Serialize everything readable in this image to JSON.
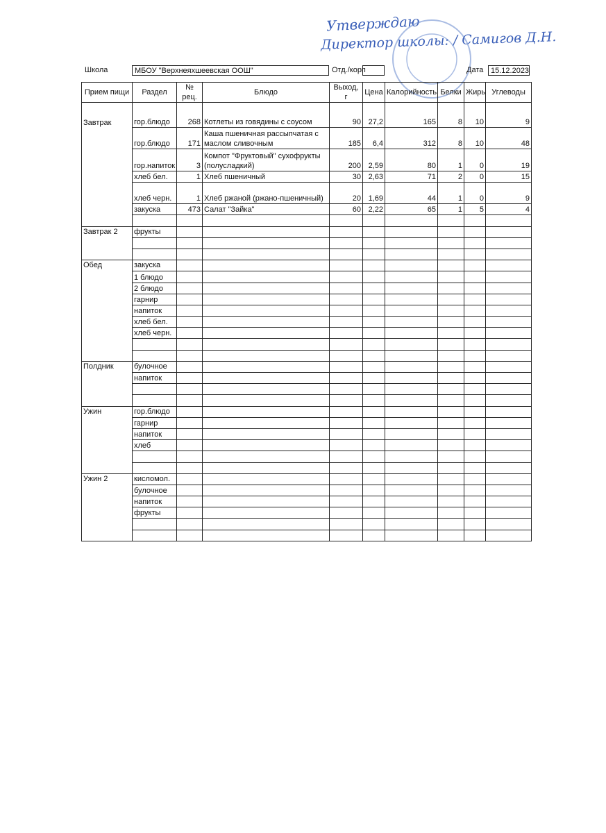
{
  "approval": {
    "line1": "Утверждаю",
    "line2": "Директор школы: / Самигов Д.Н."
  },
  "header": {
    "school_label": "Школа",
    "school_name": "МБОУ \"Верхнеяхшеевская ООШ\"",
    "dept_label": "Отд./корп",
    "date_label": "Дата",
    "date": "15.12.2023"
  },
  "table": {
    "columns": [
      "Прием пищи",
      "Раздел",
      "№ рец.",
      "Блюдо",
      "Выход, г",
      "Цена",
      "Калорийность",
      "Белки",
      "Жиры",
      "Углеводы"
    ],
    "sections": [
      {
        "meal": "Завтрак",
        "rows": [
          [
            "гор.блюдо",
            "268",
            "Котлеты из говядины с соусом",
            "90",
            "27,2",
            "165",
            "8",
            "10",
            "9"
          ],
          [
            "гор.блюдо",
            "171",
            "Каша пшеничная рассыпчатая с маслом сливочным",
            "185",
            "6,4",
            "312",
            "8",
            "10",
            "48"
          ],
          [
            "гор.напиток",
            "3",
            "Компот \"Фруктовый\" сухофрукты (полусладкий)",
            "200",
            "2,59",
            "80",
            "1",
            "0",
            "19"
          ],
          [
            "хлеб бел.",
            "1",
            "Хлеб пшеничный",
            "30",
            "2,63",
            "71",
            "2",
            "0",
            "15"
          ],
          [
            "хлеб черн.",
            "1",
            "Хлеб ржаной (ржано-пшеничный)",
            "20",
            "1,69",
            "44",
            "1",
            "0",
            "9"
          ],
          [
            "закуска",
            "473",
            "Салат \"Зайка\"",
            "60",
            "2,22",
            "65",
            "1",
            "5",
            "4"
          ],
          null
        ]
      },
      {
        "meal": "Завтрак 2",
        "rows": [
          [
            "фрукты"
          ],
          null,
          null
        ]
      },
      {
        "meal": "Обед",
        "rows": [
          [
            "закуска"
          ],
          [
            "1 блюдо"
          ],
          [
            "2 блюдо"
          ],
          [
            "гарнир"
          ],
          [
            "напиток"
          ],
          [
            "хлеб бел."
          ],
          [
            "хлеб черн."
          ],
          null,
          null
        ]
      },
      {
        "meal": "Полдник",
        "rows": [
          [
            "булочное"
          ],
          [
            "напиток"
          ],
          null,
          null
        ]
      },
      {
        "meal": "Ужин",
        "rows": [
          [
            "гор.блюдо"
          ],
          [
            "гарнир"
          ],
          [
            "напиток"
          ],
          [
            "хлеб"
          ],
          null,
          null
        ]
      },
      {
        "meal": "Ужин 2",
        "rows": [
          [
            "кисломол."
          ],
          [
            "булочное"
          ],
          [
            "напиток"
          ],
          [
            "фрукты"
          ],
          null,
          null
        ]
      }
    ]
  }
}
